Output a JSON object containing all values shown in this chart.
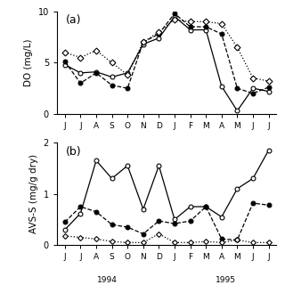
{
  "x_labels": [
    "J",
    "J",
    "A",
    "S",
    "O",
    "N",
    "D",
    "J",
    "F",
    "M",
    "A",
    "M",
    "J",
    "J"
  ],
  "year_labels": [
    "1994",
    "1995"
  ],
  "panel_a": {
    "title": "(a)",
    "ylabel": "DO (mg/L)",
    "ylim": [
      0,
      10
    ],
    "yticks": [
      0,
      5,
      10
    ],
    "series": [
      {
        "name": "open_circle_solid",
        "marker": "o",
        "markersize": 3.5,
        "linestyle": "-",
        "markerfacecolor": "white",
        "color": "black",
        "values": [
          4.8,
          4.0,
          4.1,
          3.6,
          4.0,
          6.8,
          7.4,
          9.5,
          8.2,
          8.2,
          2.7,
          0.3,
          2.5,
          2.2
        ]
      },
      {
        "name": "filled_circle_dashed",
        "marker": "o",
        "markersize": 3.5,
        "linestyle": "--",
        "markerfacecolor": "black",
        "color": "black",
        "values": [
          5.1,
          3.0,
          4.0,
          2.8,
          2.5,
          7.0,
          7.8,
          9.8,
          8.5,
          8.5,
          7.8,
          2.5,
          2.0,
          2.6
        ]
      },
      {
        "name": "open_diamond_dotted",
        "marker": "D",
        "markersize": 3.5,
        "linestyle": ":",
        "markerfacecolor": "white",
        "color": "black",
        "values": [
          6.0,
          5.5,
          6.2,
          5.0,
          3.8,
          7.0,
          8.0,
          9.2,
          9.0,
          9.0,
          8.8,
          6.5,
          3.5,
          3.2
        ]
      }
    ]
  },
  "panel_b": {
    "title": "(b)",
    "ylabel": "AVS-S (mg/g dry)",
    "ylim": [
      0,
      2
    ],
    "yticks": [
      0,
      1,
      2
    ],
    "series": [
      {
        "name": "open_circle_solid",
        "marker": "o",
        "markersize": 3.5,
        "linestyle": "-",
        "markerfacecolor": "white",
        "color": "black",
        "values": [
          0.3,
          0.62,
          1.65,
          1.3,
          1.55,
          0.7,
          1.55,
          0.5,
          0.75,
          0.75,
          0.55,
          1.1,
          1.3,
          1.85
        ]
      },
      {
        "name": "filled_circle_dashed",
        "marker": "o",
        "markersize": 3.5,
        "linestyle": "--",
        "markerfacecolor": "black",
        "color": "black",
        "values": [
          0.45,
          0.75,
          0.65,
          0.4,
          0.35,
          0.22,
          0.47,
          0.42,
          0.47,
          0.75,
          0.12,
          0.1,
          0.82,
          0.78
        ]
      },
      {
        "name": "open_diamond_dotted",
        "marker": "D",
        "markersize": 3.0,
        "linestyle": ":",
        "markerfacecolor": "white",
        "color": "black",
        "values": [
          0.18,
          0.15,
          0.12,
          0.07,
          0.05,
          0.05,
          0.22,
          0.05,
          0.05,
          0.07,
          0.05,
          0.1,
          0.05,
          0.05
        ]
      }
    ]
  }
}
